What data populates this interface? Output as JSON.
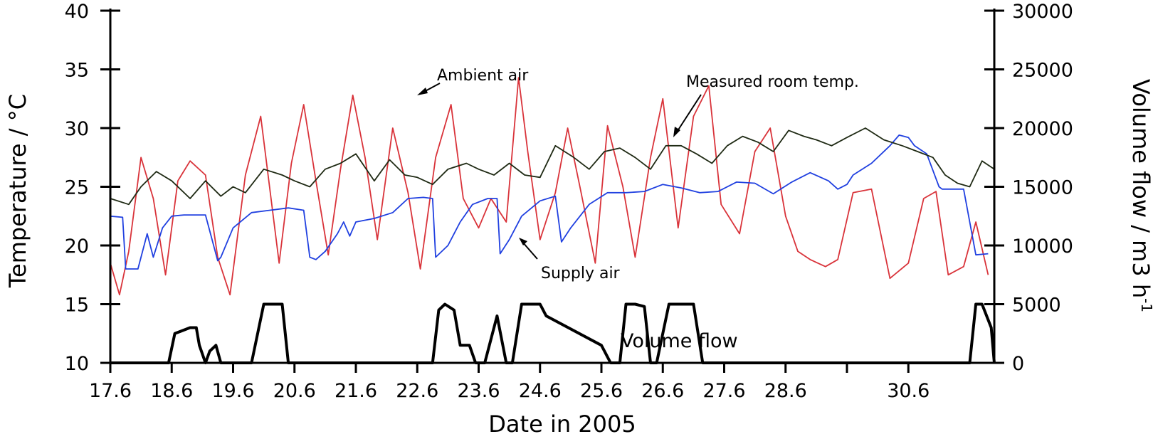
{
  "chart_data": {
    "type": "line",
    "xlabel": "Date in 2005",
    "ylabel_left": "Temperature / °C",
    "ylabel_right": "Volume flow / m3 h-1",
    "ylim_left": [
      10,
      40
    ],
    "ylim_right": [
      0,
      30000
    ],
    "xlim": [
      0,
      14.4
    ],
    "y_ticks_left": [
      "10",
      "15",
      "20",
      "25",
      "30",
      "35",
      "40"
    ],
    "y_ticks_right": [
      "0",
      "5000",
      "10000",
      "15000",
      "20000",
      "25000",
      "30000"
    ],
    "x_ticks": [
      "17.6",
      "18.6",
      "19.6",
      "20.6",
      "21.6",
      "22.6",
      "23.6",
      "24.6",
      "25.6",
      "26.6",
      "27.6",
      "28.6",
      "30.6"
    ],
    "x_tick_positions": [
      0,
      1,
      2,
      3,
      4,
      5,
      6,
      7,
      8,
      9,
      10,
      11,
      12,
      13
    ],
    "x_tick_label_positions": [
      0,
      1,
      2,
      3,
      4,
      5,
      6,
      7,
      8,
      9,
      10,
      11,
      13
    ],
    "annotations": [
      "Ambient air",
      "Measured room temp.",
      "Supply air",
      "Volume flow"
    ],
    "series": [
      {
        "name": "Ambient air",
        "axis": "left",
        "color": "#d9333a",
        "x": [
          0,
          0.15,
          0.3,
          0.5,
          0.7,
          0.9,
          1.1,
          1.3,
          1.55,
          1.75,
          1.95,
          2.2,
          2.45,
          2.75,
          2.95,
          3.15,
          3.35,
          3.55,
          3.75,
          3.95,
          4.15,
          4.35,
          4.6,
          4.85,
          5.05,
          5.3,
          5.55,
          5.75,
          6.0,
          6.2,
          6.45,
          6.65,
          6.8,
          7.0,
          7.25,
          7.45,
          7.65,
          7.9,
          8.1,
          8.35,
          8.55,
          8.8,
          9.0,
          9.25,
          9.5,
          9.75,
          9.95,
          10.25,
          10.5,
          10.75,
          11.0,
          11.2,
          11.4,
          11.65,
          11.85,
          12.1,
          12.4,
          12.7,
          13.0,
          13.25,
          13.45,
          13.65,
          13.9,
          14.1,
          14.3
        ],
        "values": [
          18.5,
          15.8,
          19.5,
          27.5,
          24.0,
          17.5,
          25.5,
          27.2,
          26.0,
          19.0,
          15.8,
          26.0,
          31.0,
          18.5,
          27.0,
          32.0,
          25.5,
          19.2,
          26.5,
          32.8,
          27.5,
          20.5,
          30.0,
          24.5,
          18.0,
          27.5,
          32.0,
          24.0,
          21.5,
          24.0,
          22.0,
          34.3,
          28.0,
          20.5,
          24.5,
          30.0,
          25.0,
          18.5,
          30.2,
          25.0,
          19.0,
          27.5,
          32.5,
          21.5,
          31.0,
          33.6,
          23.5,
          21.0,
          28.0,
          30.0,
          22.5,
          19.5,
          18.8,
          18.2,
          18.8,
          24.5,
          24.8,
          17.2,
          18.5,
          24.0,
          24.6,
          17.5,
          18.2,
          22.0,
          17.5
        ]
      },
      {
        "name": "Measured room temp.",
        "axis": "left",
        "color": "#1f2a14",
        "x": [
          0,
          0.3,
          0.5,
          0.75,
          1.0,
          1.3,
          1.55,
          1.8,
          2.0,
          2.2,
          2.5,
          2.8,
          3.0,
          3.25,
          3.5,
          3.75,
          4.0,
          4.3,
          4.55,
          4.8,
          5.0,
          5.25,
          5.5,
          5.8,
          6.0,
          6.25,
          6.5,
          6.75,
          7.0,
          7.25,
          7.55,
          7.8,
          8.05,
          8.3,
          8.55,
          8.8,
          9.05,
          9.3,
          9.55,
          9.8,
          10.05,
          10.3,
          10.55,
          10.8,
          11.05,
          11.3,
          11.5,
          11.75,
          12.0,
          12.3,
          12.6,
          12.9,
          13.15,
          13.4,
          13.6,
          13.8,
          14.0,
          14.2,
          14.4
        ],
        "values": [
          24.0,
          23.5,
          25.0,
          26.3,
          25.5,
          24.0,
          25.5,
          24.2,
          25.0,
          24.5,
          26.5,
          26.0,
          25.5,
          25.0,
          26.5,
          27.0,
          27.8,
          25.5,
          27.3,
          26.0,
          25.8,
          25.2,
          26.5,
          27.0,
          26.5,
          26.0,
          27.0,
          26.0,
          25.8,
          28.5,
          27.5,
          26.5,
          28.0,
          28.3,
          27.5,
          26.5,
          28.5,
          28.5,
          27.8,
          27.0,
          28.5,
          29.3,
          28.8,
          28.0,
          29.8,
          29.3,
          29.0,
          28.5,
          29.2,
          30.0,
          29.0,
          28.5,
          28.0,
          27.5,
          26.0,
          25.3,
          25.0,
          27.2,
          26.5
        ]
      },
      {
        "name": "Supply air",
        "axis": "left",
        "color": "#2040e0",
        "x": [
          0,
          0.2,
          0.25,
          0.45,
          0.6,
          0.7,
          0.85,
          1.0,
          1.2,
          1.4,
          1.55,
          1.75,
          1.8,
          2.0,
          2.3,
          2.6,
          2.9,
          3.15,
          3.25,
          3.35,
          3.5,
          3.7,
          3.8,
          3.9,
          4.0,
          4.3,
          4.6,
          4.85,
          5.1,
          5.25,
          5.3,
          5.5,
          5.7,
          5.9,
          6.15,
          6.3,
          6.35,
          6.5,
          6.7,
          7.0,
          7.25,
          7.35,
          7.5,
          7.8,
          8.1,
          8.4,
          8.7,
          9.0,
          9.3,
          9.6,
          9.9,
          10.2,
          10.5,
          10.8,
          11.1,
          11.4,
          11.7,
          11.85,
          12.0,
          12.1,
          12.4,
          12.7,
          12.85,
          13.0,
          13.1,
          13.3,
          13.5,
          13.55,
          13.7,
          13.9,
          14.1,
          14.3
        ],
        "values": [
          22.5,
          22.4,
          18.0,
          18.0,
          21.0,
          19.0,
          21.5,
          22.5,
          22.6,
          22.6,
          22.6,
          18.7,
          19.0,
          21.5,
          22.8,
          23.0,
          23.2,
          23.0,
          19.0,
          18.8,
          19.5,
          21.0,
          22.0,
          20.8,
          22.0,
          22.3,
          22.8,
          24.0,
          24.1,
          24.0,
          19.0,
          20.0,
          22.0,
          23.5,
          24.0,
          24.0,
          19.3,
          20.5,
          22.5,
          23.8,
          24.2,
          20.3,
          21.5,
          23.5,
          24.5,
          24.5,
          24.6,
          25.2,
          24.9,
          24.5,
          24.6,
          25.4,
          25.3,
          24.4,
          25.4,
          26.2,
          25.5,
          24.8,
          25.2,
          26.0,
          27.0,
          28.5,
          29.4,
          29.2,
          28.5,
          27.8,
          25.0,
          24.8,
          24.8,
          24.8,
          19.2,
          19.3
        ]
      },
      {
        "name": "Volume flow",
        "axis": "right",
        "color": "#000000",
        "x": [
          0,
          0.95,
          1.05,
          1.3,
          1.4,
          1.45,
          1.55,
          1.62,
          1.72,
          1.8,
          2.3,
          2.5,
          2.6,
          2.8,
          2.9,
          3.1,
          3.2,
          5.25,
          5.35,
          5.45,
          5.6,
          5.7,
          5.85,
          5.95,
          6.1,
          6.3,
          6.45,
          6.55,
          6.7,
          6.85,
          7.0,
          7.1,
          8.0,
          8.15,
          8.3,
          8.4,
          8.45,
          8.55,
          8.7,
          8.8,
          8.9,
          9.1,
          9.2,
          9.35,
          9.5,
          9.65,
          9.8,
          9.95,
          14.0,
          14.1,
          14.2,
          14.35,
          14.4
        ],
        "values": [
          0,
          0,
          2500,
          3000,
          3000,
          1500,
          0,
          1000,
          1500,
          0,
          0,
          5000,
          5000,
          5000,
          0,
          0,
          0,
          0,
          4500,
          5000,
          4500,
          1500,
          1500,
          0,
          0,
          4000,
          0,
          0,
          5000,
          5000,
          5000,
          4000,
          1500,
          0,
          0,
          5000,
          5000,
          5000,
          4800,
          0,
          0,
          5000,
          5000,
          5000,
          5000,
          0,
          0,
          0,
          0,
          5000,
          5000,
          3000,
          0
        ]
      }
    ]
  }
}
